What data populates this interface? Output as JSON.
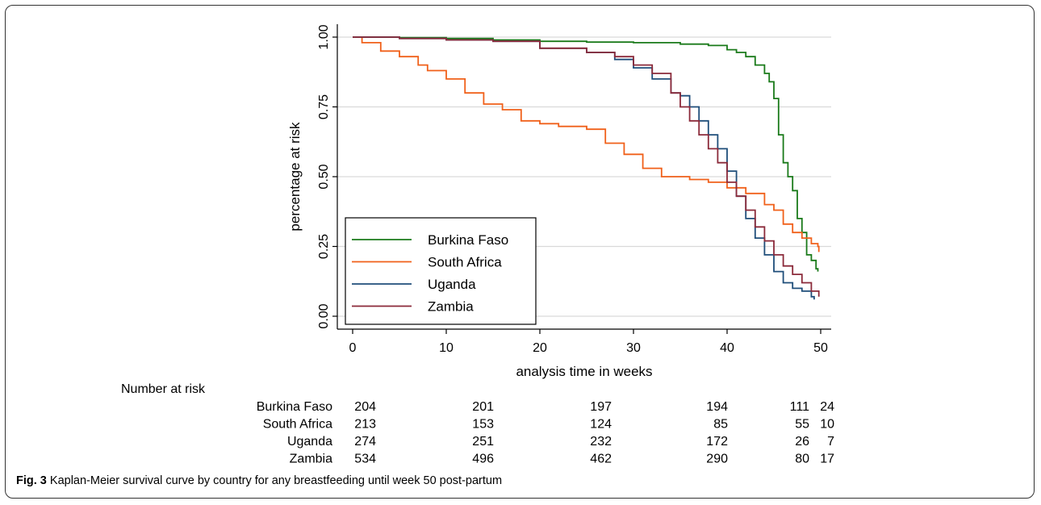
{
  "chart_data": {
    "type": "line",
    "xlabel": "analysis time in weeks",
    "ylabel": "percentage at risk",
    "xlim": [
      0,
      50
    ],
    "ylim": [
      0,
      1
    ],
    "xticks": [
      0,
      10,
      20,
      30,
      40,
      50
    ],
    "yticks": [
      "0.00",
      "0.25",
      "0.50",
      "0.75",
      "1.00"
    ],
    "grid": "horizontal",
    "legend_position": "bottom-left",
    "series": [
      {
        "name": "Burkina Faso",
        "color": "#1a7a1a",
        "points": [
          [
            0,
            1.0
          ],
          [
            5,
            0.998
          ],
          [
            10,
            0.995
          ],
          [
            15,
            0.99
          ],
          [
            20,
            0.985
          ],
          [
            25,
            0.982
          ],
          [
            30,
            0.98
          ],
          [
            35,
            0.975
          ],
          [
            38,
            0.97
          ],
          [
            40,
            0.955
          ],
          [
            41,
            0.945
          ],
          [
            42,
            0.93
          ],
          [
            43,
            0.9
          ],
          [
            44,
            0.87
          ],
          [
            44.5,
            0.84
          ],
          [
            45,
            0.78
          ],
          [
            45.5,
            0.65
          ],
          [
            46,
            0.55
          ],
          [
            46.5,
            0.5
          ],
          [
            47,
            0.45
          ],
          [
            47.5,
            0.35
          ],
          [
            48,
            0.3
          ],
          [
            48.5,
            0.22
          ],
          [
            49,
            0.2
          ],
          [
            49.5,
            0.17
          ],
          [
            49.7,
            0.16
          ]
        ]
      },
      {
        "name": "South Africa",
        "color": "#f0601a",
        "points": [
          [
            0,
            1.0
          ],
          [
            1,
            0.98
          ],
          [
            3,
            0.95
          ],
          [
            5,
            0.93
          ],
          [
            7,
            0.9
          ],
          [
            8,
            0.88
          ],
          [
            10,
            0.85
          ],
          [
            12,
            0.8
          ],
          [
            14,
            0.76
          ],
          [
            16,
            0.74
          ],
          [
            18,
            0.7
          ],
          [
            20,
            0.69
          ],
          [
            22,
            0.68
          ],
          [
            25,
            0.67
          ],
          [
            27,
            0.62
          ],
          [
            29,
            0.58
          ],
          [
            31,
            0.53
          ],
          [
            33,
            0.5
          ],
          [
            36,
            0.49
          ],
          [
            38,
            0.48
          ],
          [
            40,
            0.46
          ],
          [
            42,
            0.44
          ],
          [
            44,
            0.4
          ],
          [
            45,
            0.38
          ],
          [
            46,
            0.33
          ],
          [
            47,
            0.3
          ],
          [
            48,
            0.28
          ],
          [
            49,
            0.26
          ],
          [
            49.7,
            0.25
          ],
          [
            49.8,
            0.23
          ]
        ]
      },
      {
        "name": "Uganda",
        "color": "#1f4e7a",
        "points": [
          [
            0,
            1.0
          ],
          [
            5,
            0.995
          ],
          [
            10,
            0.99
          ],
          [
            15,
            0.985
          ],
          [
            20,
            0.96
          ],
          [
            25,
            0.945
          ],
          [
            28,
            0.92
          ],
          [
            30,
            0.89
          ],
          [
            32,
            0.85
          ],
          [
            34,
            0.8
          ],
          [
            35,
            0.79
          ],
          [
            36,
            0.75
          ],
          [
            37,
            0.7
          ],
          [
            38,
            0.65
          ],
          [
            39,
            0.6
          ],
          [
            40,
            0.52
          ],
          [
            41,
            0.43
          ],
          [
            42,
            0.35
          ],
          [
            43,
            0.28
          ],
          [
            44,
            0.22
          ],
          [
            45,
            0.16
          ],
          [
            46,
            0.12
          ],
          [
            47,
            0.1
          ],
          [
            48,
            0.09
          ],
          [
            49,
            0.07
          ],
          [
            49.3,
            0.06
          ]
        ]
      },
      {
        "name": "Zambia",
        "color": "#8b2a3a",
        "points": [
          [
            0,
            1.0
          ],
          [
            5,
            0.995
          ],
          [
            10,
            0.99
          ],
          [
            15,
            0.985
          ],
          [
            20,
            0.96
          ],
          [
            25,
            0.945
          ],
          [
            28,
            0.93
          ],
          [
            30,
            0.9
          ],
          [
            32,
            0.87
          ],
          [
            34,
            0.8
          ],
          [
            35,
            0.75
          ],
          [
            36,
            0.7
          ],
          [
            37,
            0.65
          ],
          [
            38,
            0.6
          ],
          [
            39,
            0.55
          ],
          [
            40,
            0.48
          ],
          [
            41,
            0.43
          ],
          [
            42,
            0.38
          ],
          [
            43,
            0.32
          ],
          [
            44,
            0.27
          ],
          [
            45,
            0.22
          ],
          [
            46,
            0.18
          ],
          [
            47,
            0.15
          ],
          [
            48,
            0.12
          ],
          [
            49,
            0.09
          ],
          [
            49.8,
            0.07
          ]
        ]
      }
    ]
  },
  "risk_table": {
    "header": "Number at risk",
    "rows": [
      {
        "name": "Burkina Faso",
        "values": [
          "204",
          "201",
          "197",
          "194",
          "111",
          "24"
        ]
      },
      {
        "name": "South Africa",
        "values": [
          "213",
          "153",
          "124",
          "85",
          "55",
          "10"
        ]
      },
      {
        "name": "Uganda",
        "values": [
          "274",
          "251",
          "232",
          "172",
          "26",
          "7"
        ]
      },
      {
        "name": "Zambia",
        "values": [
          "534",
          "496",
          "462",
          "290",
          "80",
          "17"
        ]
      }
    ]
  },
  "caption": {
    "label": "Fig. 3",
    "text": " Kaplan-Meier survival curve by country for any breastfeeding until week 50 post-partum"
  }
}
